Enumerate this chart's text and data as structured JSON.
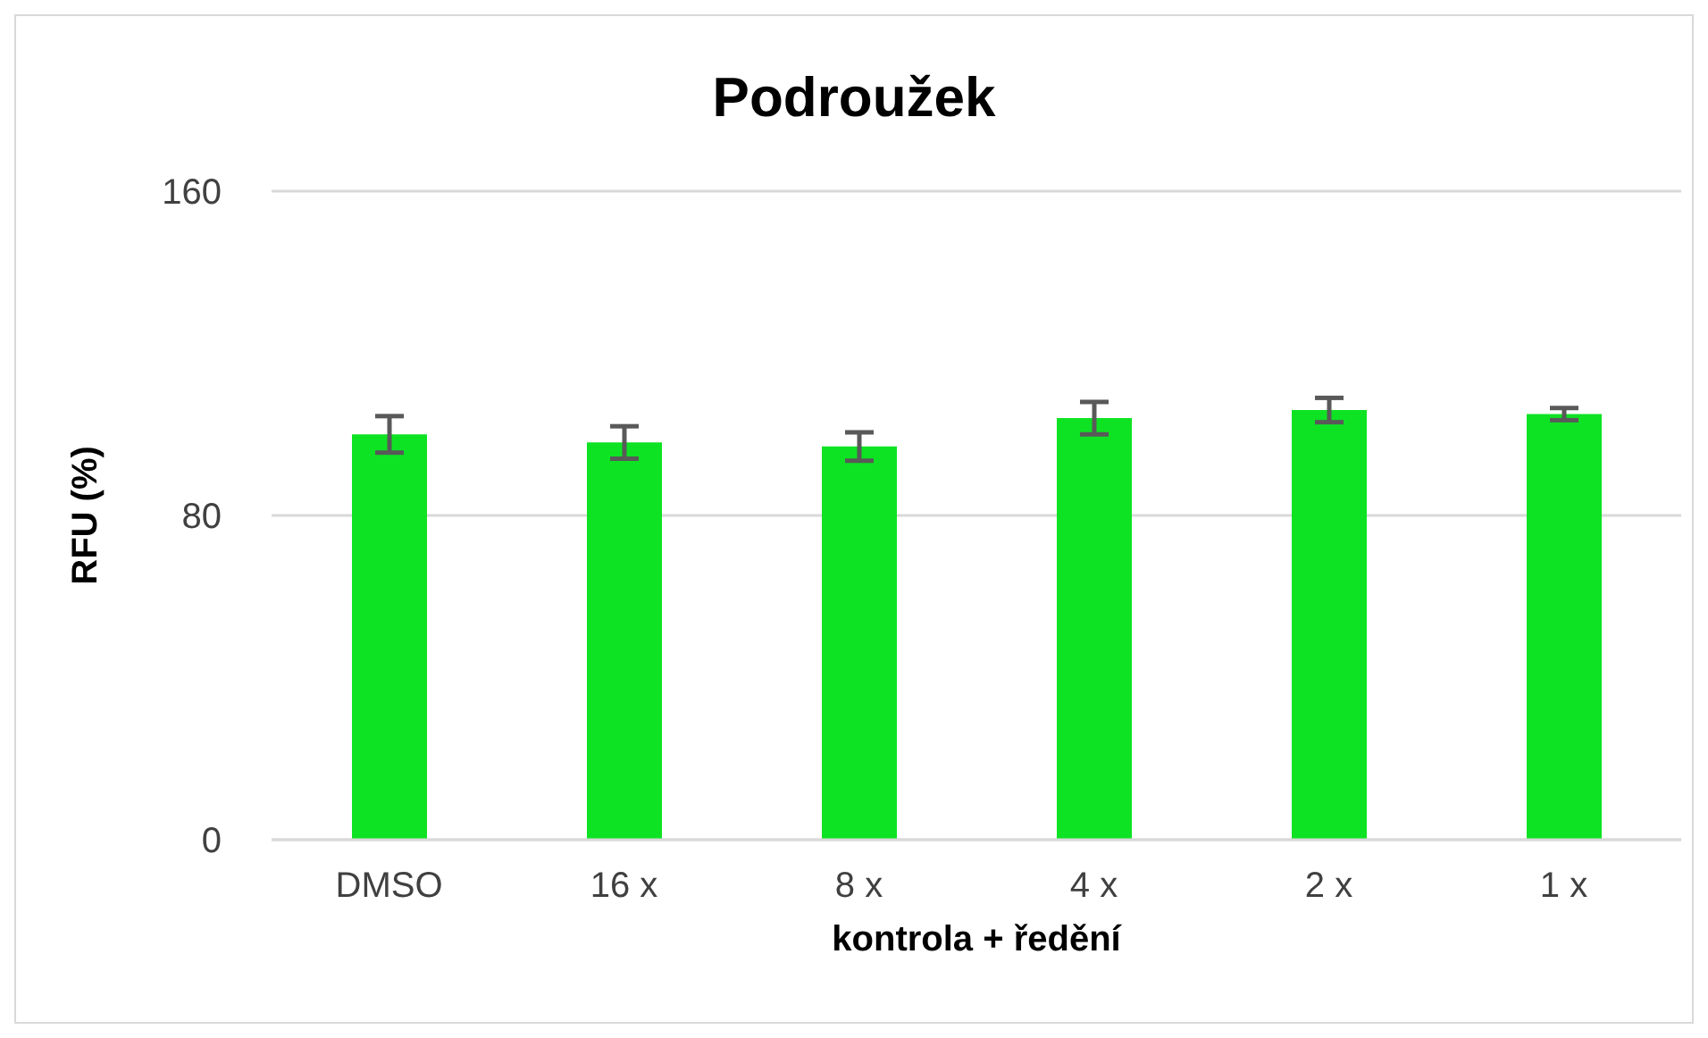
{
  "chart_data": {
    "type": "bar",
    "title": "Podroužek",
    "xlabel": "kontrola + ředění",
    "ylabel": "RFU (%)",
    "categories": [
      "DMSO",
      "16 x",
      "8 x",
      "4 x",
      "2 x",
      "1 x"
    ],
    "values": [
      100,
      98,
      97,
      104,
      106,
      105
    ],
    "errors": [
      4.5,
      4,
      3.5,
      4,
      3,
      1.5
    ],
    "color": "#0ee323",
    "ylim": [
      0,
      160
    ],
    "yticks": [
      0,
      80,
      160
    ],
    "grid": "y"
  }
}
